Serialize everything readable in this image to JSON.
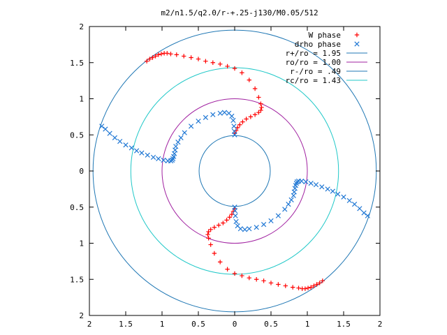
{
  "chart_data": {
    "type": "scatter",
    "title": "m2/n1.5/q2.0/r-+.25-j130/M0.05/512",
    "xlabel": "",
    "ylabel": "",
    "xlim": [
      -2,
      2
    ],
    "ylim": [
      -2,
      2
    ],
    "x_ticks": [
      "2",
      "1.5",
      "1",
      "0.5",
      "0",
      "0.5",
      "1",
      "1.5",
      "2"
    ],
    "y_ticks": [
      "2",
      "1.5",
      "1",
      "0.5",
      "0",
      "0.5",
      "1",
      "1.5",
      "2"
    ],
    "grid": false,
    "legend_position": "top-right",
    "circles": [
      {
        "name": "r+/ro = 1.95",
        "r": 1.95,
        "color": "#1f77b4"
      },
      {
        "name": "ro/ro = 1.00",
        "r": 1.0,
        "color": "#a020a0"
      },
      {
        "name": "r-/ro = .49",
        "r": 0.49,
        "color": "#1f77b4"
      },
      {
        "name": "rc/ro = 1.43",
        "r": 1.43,
        "color": "#20c8c8"
      }
    ],
    "series": [
      {
        "name": "W phase",
        "marker": "+",
        "color": "#ff0000",
        "x": [
          -1.21,
          -1.17,
          -1.13,
          -1.09,
          -1.05,
          -1.01,
          -0.97,
          -0.93,
          -0.88,
          -0.8,
          -0.7,
          -0.6,
          -0.5,
          -0.4,
          -0.3,
          -0.2,
          -0.1,
          0.0,
          0.1,
          0.2,
          0.28,
          0.33,
          0.36,
          0.37,
          0.36,
          0.33,
          0.28,
          0.22,
          0.16,
          0.11,
          0.07,
          0.04,
          0.02,
          0.0,
          1.21,
          1.17,
          1.13,
          1.09,
          1.05,
          1.01,
          0.97,
          0.93,
          0.88,
          0.8,
          0.7,
          0.6,
          0.5,
          0.4,
          0.3,
          0.2,
          0.1,
          0.0,
          -0.1,
          -0.2,
          -0.28,
          -0.33,
          -0.36,
          -0.37,
          -0.36,
          -0.33,
          -0.28,
          -0.22,
          -0.16,
          -0.11,
          -0.07,
          -0.04,
          -0.02,
          0.0
        ],
        "y": [
          1.52,
          1.55,
          1.57,
          1.59,
          1.61,
          1.62,
          1.63,
          1.63,
          1.62,
          1.61,
          1.59,
          1.57,
          1.55,
          1.52,
          1.5,
          1.48,
          1.45,
          1.42,
          1.36,
          1.26,
          1.14,
          1.02,
          0.93,
          0.88,
          0.84,
          0.81,
          0.78,
          0.75,
          0.72,
          0.68,
          0.64,
          0.6,
          0.56,
          0.52,
          -1.52,
          -1.55,
          -1.57,
          -1.59,
          -1.61,
          -1.62,
          -1.63,
          -1.63,
          -1.62,
          -1.61,
          -1.59,
          -1.57,
          -1.55,
          -1.52,
          -1.5,
          -1.48,
          -1.45,
          -1.42,
          -1.36,
          -1.26,
          -1.14,
          -1.02,
          -0.93,
          -0.88,
          -0.84,
          -0.81,
          -0.78,
          -0.75,
          -0.72,
          -0.68,
          -0.64,
          -0.6,
          -0.56,
          -0.52
        ]
      },
      {
        "name": "drho phase",
        "marker": "x",
        "color": "#1f77d4",
        "x": [
          -1.83,
          -1.78,
          -1.72,
          -1.65,
          -1.58,
          -1.5,
          -1.42,
          -1.35,
          -1.28,
          -1.2,
          -1.12,
          -1.05,
          -0.98,
          -0.92,
          -0.88,
          -0.86,
          -0.85,
          -0.84,
          -0.83,
          -0.82,
          -0.81,
          -0.78,
          -0.74,
          -0.69,
          -0.6,
          -0.5,
          -0.4,
          -0.3,
          -0.2,
          -0.14,
          -0.08,
          -0.04,
          -0.02,
          -0.01,
          -0.005,
          0.0,
          1.83,
          1.78,
          1.72,
          1.65,
          1.58,
          1.5,
          1.42,
          1.35,
          1.28,
          1.2,
          1.12,
          1.05,
          0.98,
          0.92,
          0.88,
          0.86,
          0.85,
          0.84,
          0.83,
          0.82,
          0.81,
          0.78,
          0.74,
          0.69,
          0.6,
          0.5,
          0.4,
          0.3,
          0.2,
          0.14,
          0.08,
          0.04,
          0.02,
          0.01,
          0.005,
          0.0
        ],
        "y": [
          0.62,
          0.58,
          0.52,
          0.46,
          0.41,
          0.36,
          0.32,
          0.28,
          0.25,
          0.22,
          0.19,
          0.17,
          0.15,
          0.14,
          0.14,
          0.15,
          0.17,
          0.2,
          0.24,
          0.29,
          0.34,
          0.4,
          0.46,
          0.53,
          0.62,
          0.69,
          0.74,
          0.78,
          0.8,
          0.81,
          0.8,
          0.76,
          0.7,
          0.62,
          0.55,
          0.5,
          -0.62,
          -0.58,
          -0.52,
          -0.46,
          -0.41,
          -0.36,
          -0.32,
          -0.28,
          -0.25,
          -0.22,
          -0.19,
          -0.17,
          -0.15,
          -0.14,
          -0.14,
          -0.15,
          -0.17,
          -0.2,
          -0.24,
          -0.29,
          -0.34,
          -0.4,
          -0.46,
          -0.53,
          -0.62,
          -0.69,
          -0.74,
          -0.78,
          -0.8,
          -0.81,
          -0.8,
          -0.76,
          -0.7,
          -0.62,
          -0.55,
          -0.5
        ]
      }
    ]
  }
}
